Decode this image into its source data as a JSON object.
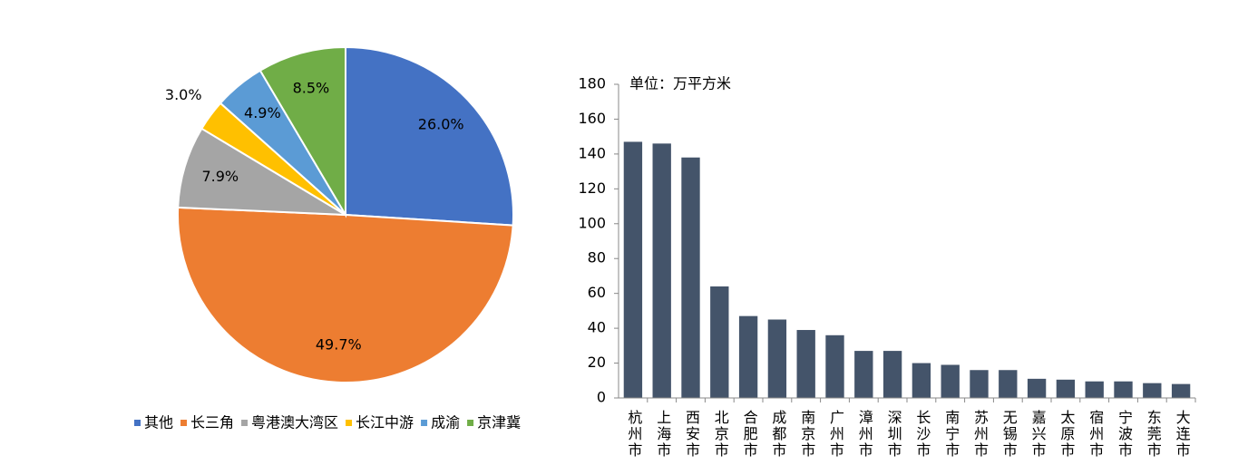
{
  "chart_data": [
    {
      "type": "pie",
      "categories": [
        "其他",
        "长三角",
        "粤港澳大湾区",
        "长江中游",
        "成渝",
        "京津冀"
      ],
      "values": [
        26.0,
        49.7,
        7.9,
        3.0,
        4.9,
        8.5
      ],
      "value_labels": [
        "26.0%",
        "49.7%",
        "7.9%",
        "3.0%",
        "4.9%",
        "8.5%"
      ],
      "colors": [
        "#4472c4",
        "#ed7d31",
        "#a5a5a5",
        "#ffc000",
        "#5b9bd5",
        "#70ad47"
      ],
      "legend": "bottom"
    },
    {
      "type": "bar",
      "annotation": "单位：万平方米",
      "categories": [
        "杭州市",
        "上海市",
        "西安市",
        "北京市",
        "合肥市",
        "成都市",
        "南京市",
        "广州市",
        "漳州市",
        "深圳市",
        "长沙市",
        "南宁市",
        "苏州市",
        "无锡市",
        "嘉兴市",
        "太原市",
        "宿州市",
        "宁波市",
        "东莞市",
        "大连市"
      ],
      "values": [
        147,
        146,
        138,
        64,
        47,
        45,
        39,
        36,
        27,
        27,
        20,
        19,
        16,
        16,
        11,
        10.5,
        9.5,
        9.5,
        8.5,
        8
      ],
      "color": "#44546a",
      "ylim": [
        0,
        180
      ],
      "yticks": [
        0,
        20,
        40,
        60,
        80,
        100,
        120,
        140,
        160,
        180
      ],
      "grid": false
    }
  ]
}
